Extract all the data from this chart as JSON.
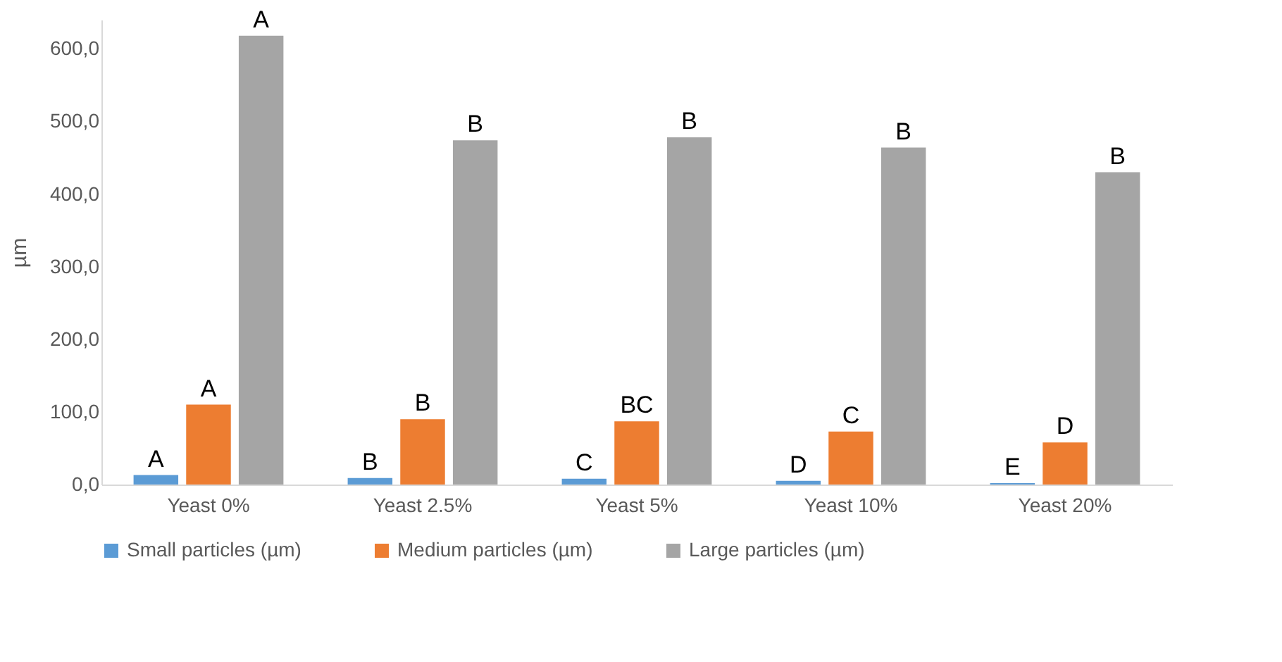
{
  "chart_data": {
    "type": "bar",
    "ylabel": "µm",
    "categories": [
      "Yeast 0%",
      "Yeast 2.5%",
      "Yeast 5%",
      "Yeast 10%",
      "Yeast 20%"
    ],
    "series": [
      {
        "name": "Small particles (µm)",
        "color": "#5b9bd5",
        "values": [
          13,
          9,
          8,
          5,
          2
        ],
        "value_labels": [
          "A",
          "B",
          "C",
          "D",
          "E"
        ]
      },
      {
        "name": "Medium particles (µm)",
        "color": "#ed7d31",
        "values": [
          110,
          90,
          87,
          73,
          58
        ],
        "value_labels": [
          "A",
          "B",
          "BC",
          "C",
          "D"
        ]
      },
      {
        "name": "Large particles  (µm)",
        "color": "#a5a5a5",
        "values": [
          618,
          474,
          478,
          464,
          430
        ],
        "value_labels": [
          "A",
          "B",
          "B",
          "B",
          "B"
        ]
      }
    ],
    "ylim": [
      0,
      640
    ],
    "yticks": [
      {
        "value": 0,
        "label": "0,0"
      },
      {
        "value": 100,
        "label": "100,0"
      },
      {
        "value": 200,
        "label": "200,0"
      },
      {
        "value": 300,
        "label": "300,0"
      },
      {
        "value": 400,
        "label": "400,0"
      },
      {
        "value": 500,
        "label": "500,0"
      },
      {
        "value": 600,
        "label": "600,0"
      }
    ],
    "grid": false,
    "legend": "bottom"
  }
}
